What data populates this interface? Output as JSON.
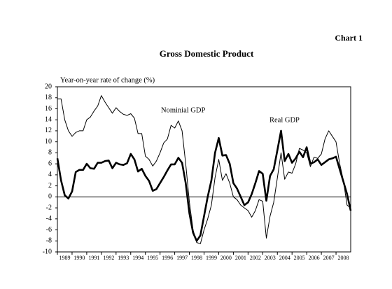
{
  "chart_data": {
    "type": "line",
    "label": "Chart 1",
    "title": "Gross Domestic Product",
    "y_label": "Year-on-year rate of change (%)",
    "x": [
      1989,
      1989.25,
      1989.5,
      1989.75,
      1990,
      1990.25,
      1990.5,
      1990.75,
      1991,
      1991.25,
      1991.5,
      1991.75,
      1992,
      1992.25,
      1992.5,
      1992.75,
      1993,
      1993.25,
      1993.5,
      1993.75,
      1994,
      1994.25,
      1994.5,
      1994.75,
      1995,
      1995.25,
      1995.5,
      1995.75,
      1996,
      1996.25,
      1996.5,
      1996.75,
      1997,
      1997.25,
      1997.5,
      1997.75,
      1998,
      1998.25,
      1998.5,
      1998.75,
      1999,
      1999.25,
      1999.5,
      1999.75,
      2000,
      2000.25,
      2000.5,
      2000.75,
      2001,
      2001.25,
      2001.5,
      2001.75,
      2002,
      2002.25,
      2002.5,
      2002.75,
      2003,
      2003.25,
      2003.5,
      2003.75,
      2004,
      2004.25,
      2004.5,
      2004.75,
      2005,
      2005.25,
      2005.5,
      2005.75,
      2006,
      2006.25,
      2006.5,
      2006.75,
      2007,
      2007.25,
      2007.5,
      2007.75,
      2008,
      2008.25,
      2008.5,
      2008.75,
      2009
    ],
    "series": [
      {
        "name": "Nominial GDP",
        "color": "#000000",
        "width": 1,
        "values": [
          17.8,
          17.8,
          14,
          12,
          11,
          11.7,
          12,
          12,
          14,
          14.5,
          15.6,
          16.5,
          18.4,
          17.2,
          16.2,
          15.2,
          16.2,
          15.5,
          15,
          14.8,
          15.1,
          14.3,
          11.5,
          11.5,
          7.4,
          6.8,
          5.6,
          6.5,
          8,
          9.8,
          10.5,
          13,
          12.5,
          13.8,
          12,
          6,
          -1,
          -6,
          -8.3,
          -8.5,
          -6,
          -4,
          -1.5,
          3.5,
          6.8,
          3,
          4.2,
          2.5,
          0,
          -0.5,
          -1.5,
          -2,
          -2.5,
          -3.7,
          -2.5,
          -0.5,
          -0.8,
          -7.5,
          -3.5,
          -1,
          3.5,
          8,
          3.2,
          4.5,
          4.3,
          6,
          8.8,
          8.5,
          8,
          5.5,
          7.2,
          7,
          7.8,
          10.5,
          12,
          11,
          10,
          6,
          3,
          -1.5,
          -2
        ]
      },
      {
        "name": "Real GDP",
        "color": "#000000",
        "width": 2.6,
        "values": [
          7,
          3,
          0.3,
          -0.3,
          1,
          4.5,
          4.9,
          4.9,
          6,
          5.2,
          5.1,
          6.2,
          6.2,
          6.5,
          6.6,
          5.2,
          6.2,
          5.9,
          5.8,
          6.1,
          7.8,
          6.8,
          4.6,
          5.1,
          3.8,
          2.9,
          1.1,
          1.4,
          2.5,
          3.6,
          4.8,
          5.9,
          5.9,
          7.1,
          6.2,
          2.5,
          -3,
          -6.5,
          -8,
          -7,
          -3.5,
          0,
          3,
          8,
          10.7,
          7.5,
          7.6,
          6,
          2.5,
          1.5,
          0,
          -1.5,
          -1,
          0.5,
          2.5,
          4.7,
          4.2,
          -0.7,
          3.8,
          5,
          8.5,
          12,
          6.5,
          7.8,
          6.2,
          7,
          8.2,
          7.2,
          9,
          6,
          6.3,
          6.8,
          5.8,
          6.3,
          6.8,
          7,
          7.3,
          5,
          2.8,
          0.5,
          -2.5
        ]
      }
    ],
    "xlim": [
      1989,
      2009
    ],
    "xticks": [
      {
        "value": 1989.5,
        "label": "1989"
      },
      {
        "value": 1990.5,
        "label": "1990"
      },
      {
        "value": 1991.5,
        "label": "1991"
      },
      {
        "value": 1992.5,
        "label": "1992"
      },
      {
        "value": 1993.5,
        "label": "1993"
      },
      {
        "value": 1994.5,
        "label": "1994"
      },
      {
        "value": 1995.5,
        "label": "1995"
      },
      {
        "value": 1996.5,
        "label": "1996"
      },
      {
        "value": 1997.5,
        "label": "1997"
      },
      {
        "value": 1998.5,
        "label": "1998"
      },
      {
        "value": 1999.5,
        "label": "1999"
      },
      {
        "value": 2000.5,
        "label": "2000"
      },
      {
        "value": 2001.5,
        "label": "2001"
      },
      {
        "value": 2002.5,
        "label": "2002"
      },
      {
        "value": 2003.5,
        "label": "2003"
      },
      {
        "value": 2004.5,
        "label": "2004"
      },
      {
        "value": 2005.5,
        "label": "2005"
      },
      {
        "value": 2006.5,
        "label": "2006"
      },
      {
        "value": 2007.5,
        "label": "2007"
      },
      {
        "value": 2008.5,
        "label": "2008"
      }
    ],
    "ylim": [
      -10,
      20
    ],
    "yticks": [
      -10,
      -8,
      -6,
      -4,
      -2,
      0,
      2,
      4,
      6,
      8,
      10,
      12,
      14,
      16,
      18,
      20
    ]
  }
}
